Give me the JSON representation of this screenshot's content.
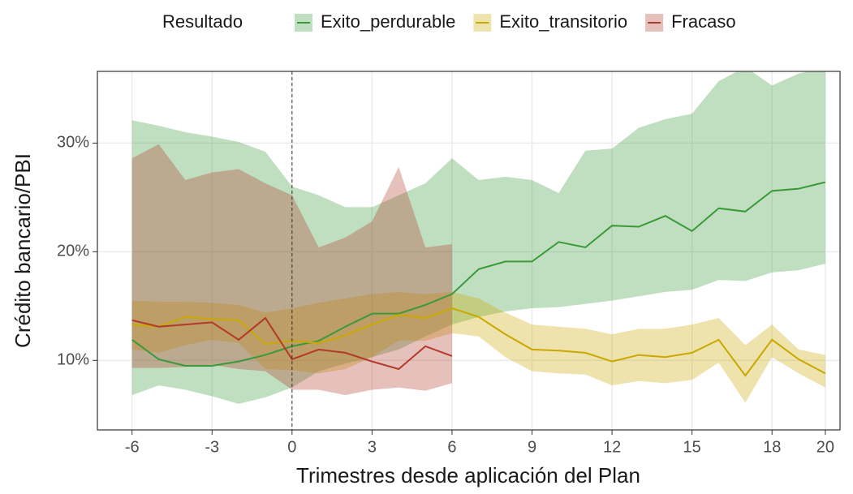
{
  "chart_data": {
    "type": "line",
    "legend_title": "Resultado",
    "legend_position": "top",
    "x_label": "Trimestres desde aplicación del Plan",
    "y_label": "Crédito bancario/PBI",
    "xlim": [
      -7.3,
      20.55
    ],
    "ylim": [
      3.6,
      36.6
    ],
    "xticks": [
      -6,
      -3,
      0,
      3,
      6,
      9,
      12,
      15,
      18,
      20
    ],
    "yticks": [
      {
        "value": 10,
        "label": "10%"
      },
      {
        "value": 20,
        "label": "20%"
      },
      {
        "value": 30,
        "label": "30%"
      }
    ],
    "grid": true,
    "vline": 0,
    "series": [
      {
        "name": "Exito_perdurable",
        "color": "#3a9a3a",
        "x": [
          -6,
          -5,
          -4,
          -3,
          -2,
          -1,
          0,
          1,
          2,
          3,
          4,
          5,
          6,
          7,
          8,
          9,
          10,
          11,
          12,
          13,
          14,
          15,
          16,
          17,
          18,
          19,
          20
        ],
        "values": [
          11.9,
          10.1,
          9.5,
          9.5,
          9.9,
          10.5,
          11.3,
          11.8,
          13.1,
          14.3,
          14.3,
          15.1,
          16.1,
          18.4,
          19.1,
          19.1,
          20.9,
          20.4,
          22.4,
          22.3,
          23.3,
          21.9,
          24.0,
          23.7,
          25.6,
          25.8,
          26.4
        ],
        "upper": [
          32.1,
          31.6,
          31.0,
          30.6,
          30.1,
          29.2,
          26.0,
          25.2,
          24.1,
          24.1,
          25.2,
          26.3,
          28.6,
          26.6,
          26.9,
          26.6,
          25.4,
          29.3,
          29.5,
          31.4,
          32.2,
          32.7,
          35.7,
          37.0,
          35.3,
          36.4,
          37.0
        ],
        "lower": [
          6.8,
          7.7,
          7.3,
          6.7,
          6.0,
          6.6,
          7.5,
          9.0,
          9.7,
          10.3,
          11.0,
          12.2,
          13.3,
          14.0,
          14.5,
          14.8,
          14.9,
          15.2,
          15.5,
          15.9,
          16.3,
          16.5,
          17.4,
          17.3,
          18.1,
          18.3,
          18.9
        ]
      },
      {
        "name": "Exito_transitorio",
        "color": "#c9a800",
        "x": [
          -6,
          -5,
          -4,
          -3,
          -2,
          -1,
          0,
          1,
          2,
          3,
          4,
          5,
          6,
          7,
          8,
          9,
          10,
          11,
          12,
          13,
          14,
          15,
          16,
          17,
          18,
          19,
          20
        ],
        "values": [
          13.3,
          13.1,
          14.0,
          13.8,
          13.7,
          11.5,
          11.8,
          11.6,
          12.3,
          13.3,
          14.2,
          13.9,
          14.8,
          14.0,
          12.4,
          11.0,
          10.9,
          10.7,
          9.9,
          10.5,
          10.3,
          10.7,
          11.9,
          8.6,
          11.9,
          10.1,
          8.8
        ],
        "upper": [
          15.5,
          15.4,
          15.4,
          15.3,
          15.1,
          14.4,
          14.8,
          15.3,
          15.7,
          16.1,
          16.3,
          16.1,
          16.3,
          15.7,
          14.4,
          13.3,
          13.1,
          12.9,
          12.4,
          12.9,
          12.9,
          13.3,
          13.9,
          11.4,
          13.3,
          11.0,
          10.5
        ],
        "lower": [
          11.0,
          10.7,
          11.4,
          11.9,
          11.6,
          9.2,
          9.1,
          8.8,
          9.2,
          10.3,
          11.8,
          11.8,
          12.5,
          12.2,
          10.3,
          9.0,
          8.8,
          8.7,
          7.7,
          8.1,
          7.9,
          8.2,
          9.8,
          6.1,
          10.3,
          8.8,
          7.5
        ]
      },
      {
        "name": "Fracaso",
        "color": "#b23a2a",
        "x": [
          -6,
          -5,
          -4,
          -3,
          -2,
          -1,
          0,
          1,
          2,
          3,
          4,
          5,
          6
        ],
        "values": [
          13.7,
          13.1,
          13.3,
          13.5,
          11.9,
          13.9,
          10.1,
          11.0,
          10.7,
          9.9,
          9.2,
          11.3,
          10.4
        ],
        "upper": [
          28.6,
          29.9,
          26.6,
          27.3,
          27.6,
          26.3,
          25.2,
          20.4,
          21.3,
          22.8,
          27.8,
          20.4,
          20.7
        ],
        "lower": [
          9.3,
          9.3,
          9.4,
          9.6,
          9.2,
          9.0,
          7.3,
          7.3,
          6.8,
          7.3,
          7.5,
          7.2,
          7.9
        ]
      }
    ]
  }
}
